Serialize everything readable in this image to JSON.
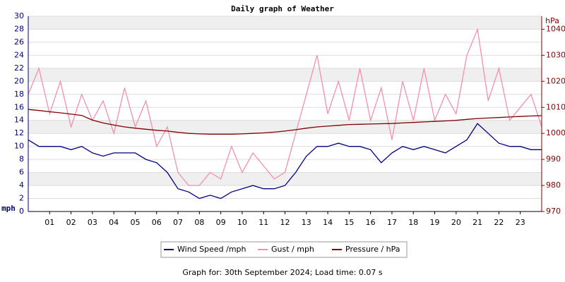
{
  "chart_data": {
    "type": "line",
    "title": "Daily graph of Weather",
    "y_label": "mph",
    "y2_label": "hPa",
    "footer": "Graph for: 30th September 2024; Load time: 0.07 s",
    "x": [
      0,
      0.5,
      1,
      1.5,
      2,
      2.5,
      3,
      3.5,
      4,
      4.5,
      5,
      5.5,
      6,
      6.5,
      7,
      7.5,
      8,
      8.5,
      9,
      9.5,
      10,
      10.5,
      11,
      11.5,
      12,
      12.5,
      13,
      13.5,
      14,
      14.5,
      15,
      15.5,
      16,
      16.5,
      17,
      17.5,
      18,
      18.5,
      19,
      19.5,
      20,
      20.5,
      21,
      21.5,
      22,
      22.5,
      23,
      23.5,
      24
    ],
    "xlim": [
      0,
      24
    ],
    "xticks": [
      {
        "value": 1,
        "label": "01"
      },
      {
        "value": 2,
        "label": "02"
      },
      {
        "value": 3,
        "label": "03"
      },
      {
        "value": 4,
        "label": "04"
      },
      {
        "value": 5,
        "label": "05"
      },
      {
        "value": 6,
        "label": "06"
      },
      {
        "value": 7,
        "label": "07"
      },
      {
        "value": 8,
        "label": "08"
      },
      {
        "value": 9,
        "label": "09"
      },
      {
        "value": 10,
        "label": "10"
      },
      {
        "value": 11,
        "label": "11"
      },
      {
        "value": 12,
        "label": "12"
      },
      {
        "value": 13,
        "label": "13"
      },
      {
        "value": 14,
        "label": "14"
      },
      {
        "value": 15,
        "label": "15"
      },
      {
        "value": 16,
        "label": "16"
      },
      {
        "value": 17,
        "label": "17"
      },
      {
        "value": 18,
        "label": "18"
      },
      {
        "value": 19,
        "label": "19"
      },
      {
        "value": 20,
        "label": "20"
      },
      {
        "value": 21,
        "label": "21"
      },
      {
        "value": 22,
        "label": "22"
      },
      {
        "value": 23,
        "label": "23"
      }
    ],
    "ylim": [
      0,
      30
    ],
    "yticks": [
      0,
      2,
      4,
      6,
      8,
      10,
      12,
      14,
      16,
      18,
      20,
      22,
      24,
      26,
      28,
      30
    ],
    "y2lim": [
      970,
      1045
    ],
    "y2ticks": [
      970,
      980,
      990,
      1000,
      1010,
      1020,
      1030,
      1040
    ],
    "grid": true,
    "series": [
      {
        "name": "Gust / mph",
        "color": "#f48fb1",
        "values": [
          18,
          22,
          15,
          20,
          13,
          18,
          14,
          17,
          12,
          19,
          13,
          17,
          10,
          13,
          6,
          4,
          4,
          6,
          5,
          10,
          6,
          9,
          7,
          5,
          6,
          12,
          18,
          24,
          15,
          20,
          14,
          22,
          14,
          19,
          11,
          20,
          14,
          22,
          14,
          18,
          15,
          24,
          28,
          17,
          22,
          14,
          16,
          18,
          13
        ]
      },
      {
        "name": "Wind Speed /mph",
        "color": "#000080",
        "values": [
          11,
          10,
          10,
          10,
          9.5,
          10,
          9,
          8.5,
          9,
          9,
          9,
          8,
          7.5,
          6,
          3.5,
          3,
          2,
          2.5,
          2,
          3,
          3.5,
          4,
          3.5,
          3.5,
          4,
          6,
          8.5,
          10,
          10,
          10.5,
          10,
          10,
          9.5,
          7.5,
          9,
          10,
          9.5,
          10,
          9.5,
          9,
          10,
          11,
          13.5,
          12,
          10.5,
          10,
          10,
          9.5,
          9.5
        ]
      },
      {
        "name": "Pressure / hPa",
        "color": "#800000",
        "axis": "y2",
        "values": [
          1009.2,
          1008.8,
          1008.3,
          1007.9,
          1007.4,
          1006.9,
          1005.1,
          1004.0,
          1003.2,
          1002.5,
          1002.0,
          1001.6,
          1001.2,
          1000.9,
          1000.4,
          1000.0,
          999.8,
          999.7,
          999.7,
          999.7,
          999.8,
          1000.0,
          1000.2,
          1000.5,
          1000.9,
          1001.4,
          1002.0,
          1002.5,
          1002.8,
          1003.1,
          1003.4,
          1003.5,
          1003.6,
          1003.7,
          1003.8,
          1004.0,
          1004.2,
          1004.4,
          1004.6,
          1004.8,
          1005.0,
          1005.4,
          1005.7,
          1005.9,
          1006.1,
          1006.3,
          1006.5,
          1006.7,
          1006.8
        ]
      }
    ]
  }
}
